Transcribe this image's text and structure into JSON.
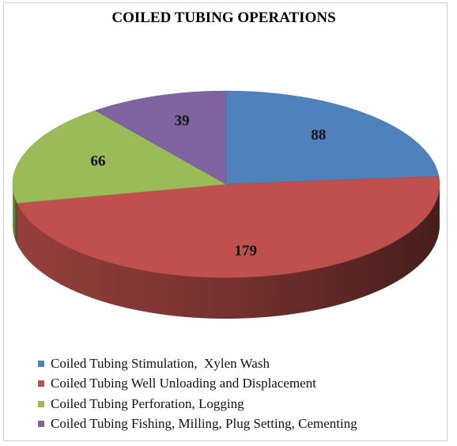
{
  "chart_data": {
    "type": "pie",
    "title": "COILED TUBING OPERATIONS",
    "categories": [
      "Coiled Tubing Stimulation,  Xylen Wash",
      "Coiled Tubing Well Unloading and Displacement",
      "Coiled Tubing Perforation, Logging",
      "Coiled Tubing Fishing, Milling, Plug Setting, Cementing"
    ],
    "values": [
      88,
      179,
      66,
      39
    ],
    "data_labels": [
      "88",
      "179",
      "66",
      "39"
    ],
    "colors": [
      "#4f81bd",
      "#c0504d",
      "#9bbb59",
      "#8064a2"
    ],
    "legend_position": "bottom",
    "style": "3d"
  }
}
